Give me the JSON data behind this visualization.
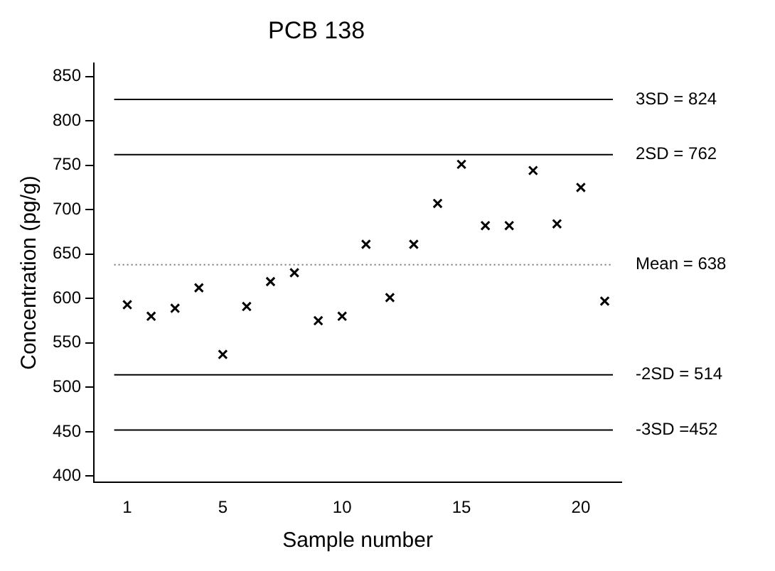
{
  "chart_data": {
    "type": "scatter",
    "title": "PCB 138",
    "xlabel": "Sample number",
    "ylabel": "Concentration (pg/g)",
    "x": [
      1,
      2,
      3,
      4,
      5,
      6,
      7,
      8,
      9,
      10,
      11,
      12,
      13,
      14,
      15,
      16,
      17,
      18,
      19,
      20,
      21
    ],
    "series": [
      {
        "color": "#000000",
        "values": [
          593,
          580,
          589,
          612,
          537,
          591,
          619,
          629,
          575,
          580,
          661,
          601,
          661,
          707,
          751,
          682,
          682,
          744,
          684,
          725,
          597
        ]
      }
    ],
    "marker": "cross",
    "xlim": [
      -0.4,
      21.7
    ],
    "xticks": [
      1,
      5,
      10,
      15,
      20
    ],
    "ylim": [
      393,
      865
    ],
    "yticks": [
      400,
      450,
      500,
      550,
      600,
      650,
      700,
      750,
      800,
      850
    ],
    "grid": false,
    "legend": false,
    "ref_lines": [
      {
        "axis": "y",
        "value": 824,
        "label": "3SD = 824",
        "color": "#000000",
        "line_style": "solid"
      },
      {
        "axis": "y",
        "value": 762,
        "label": "2SD = 762",
        "color": "#000000",
        "line_style": "solid"
      },
      {
        "axis": "y",
        "value": 638,
        "label": "Mean = 638",
        "color": "#777777",
        "line_style": "dotted"
      },
      {
        "axis": "y",
        "value": 514,
        "label": "-2SD = 514",
        "color": "#000000",
        "line_style": "solid"
      },
      {
        "axis": "y",
        "value": 452,
        "label": "-3SD =452",
        "color": "#000000",
        "line_style": "solid"
      }
    ]
  }
}
